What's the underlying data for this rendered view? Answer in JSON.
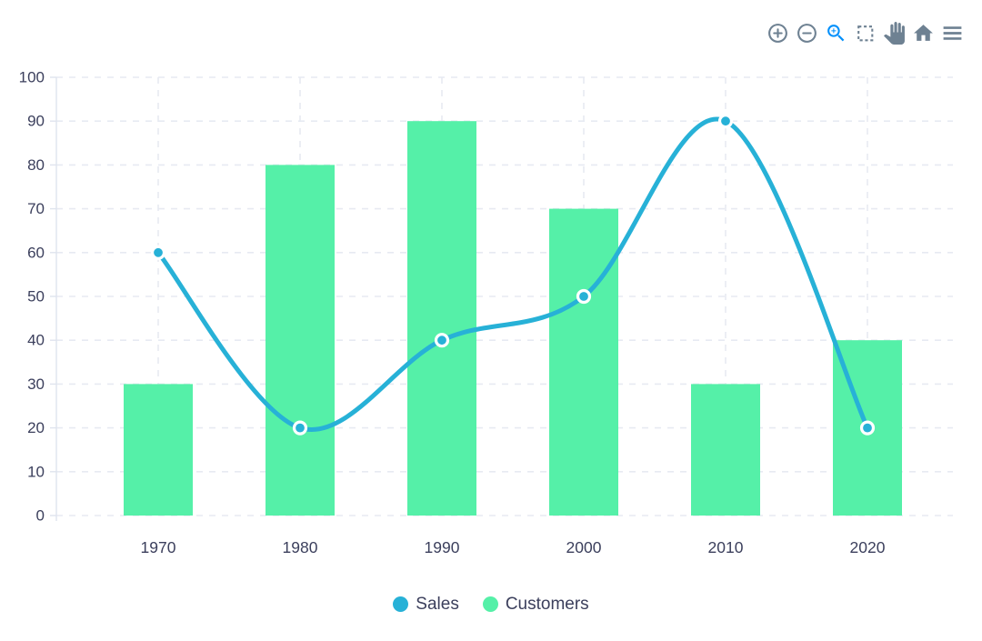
{
  "toolbar": {
    "icon_color": "#6e8192",
    "active_icon_color": "#008ffb",
    "buttons": [
      {
        "name": "zoom-in",
        "active": false
      },
      {
        "name": "zoom-out",
        "active": false
      },
      {
        "name": "zoom",
        "active": true
      },
      {
        "name": "selection",
        "active": false
      },
      {
        "name": "pan",
        "active": false
      },
      {
        "name": "home",
        "active": false
      },
      {
        "name": "menu",
        "active": false
      }
    ]
  },
  "chart_data": {
    "type": "combo",
    "categories": [
      "1970",
      "1980",
      "1990",
      "2000",
      "2010",
      "2020"
    ],
    "series": [
      {
        "name": "Sales",
        "type": "line",
        "color": "#27b1d7",
        "values": [
          60,
          20,
          40,
          50,
          90,
          20
        ]
      },
      {
        "name": "Customers",
        "type": "bar",
        "color": "#55f0a8",
        "values": [
          30,
          80,
          90,
          70,
          30,
          40
        ]
      }
    ],
    "title": "",
    "xlabel": "",
    "ylabel": "",
    "ylim": [
      0,
      100
    ],
    "yticks": [
      0,
      10,
      20,
      30,
      40,
      50,
      60,
      70,
      80,
      90,
      100
    ],
    "grid": {
      "show": true,
      "style": "dashed",
      "color": "#e7eaf2"
    },
    "axis_line_color": "#dfe4ee",
    "axis_label_color": "#3b3f5c",
    "marker_ring_color": "#ffffff",
    "legend_position": "bottom"
  }
}
